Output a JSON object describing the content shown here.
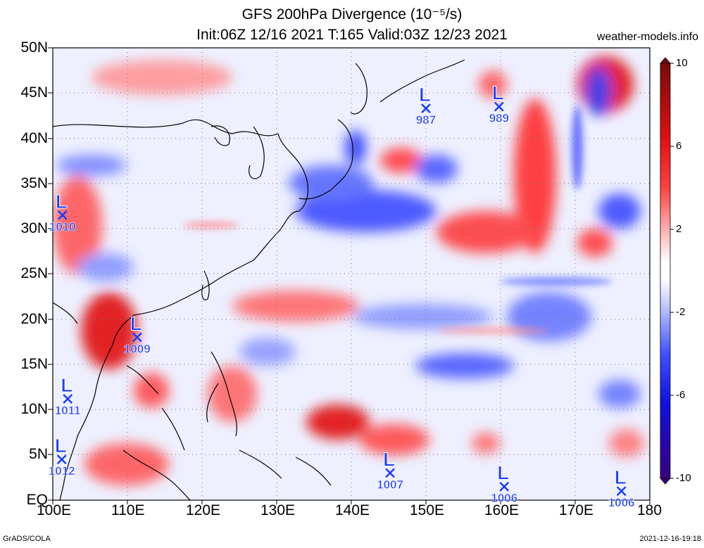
{
  "title_line1": "GFS 200hPa Divergence (10⁻⁵/s)",
  "title_line2": "Init:06Z 12/16 2021 T:165 Valid:03Z 12/23 2021",
  "site": "weather-models.info",
  "footer_left": "GrADS/COLA",
  "footer_right": "2021-12-16-19:18",
  "lat_labels": [
    "50N",
    "45N",
    "40N",
    "35N",
    "30N",
    "25N",
    "20N",
    "15N",
    "10N",
    "5N",
    "EQ"
  ],
  "lon_labels": [
    "100E",
    "110E",
    "120E",
    "130E",
    "140E",
    "150E",
    "160E",
    "170E",
    "180"
  ],
  "colorbar_labels": [
    "10",
    "6",
    "2",
    "-2",
    "-6",
    "-10"
  ],
  "colors": {
    "positive": "#ff0000",
    "negative": "#0000ff",
    "max": "#8b0000",
    "min": "#2a0060"
  },
  "lows": [
    {
      "lon": 101.3,
      "lat": 31.5,
      "pressure": "1010"
    },
    {
      "lon": 111.3,
      "lat": 18.0,
      "pressure": "1009"
    },
    {
      "lon": 102.0,
      "lat": 11.2,
      "pressure": "1011"
    },
    {
      "lon": 101.2,
      "lat": 4.5,
      "pressure": "1012"
    },
    {
      "lon": 150.0,
      "lat": 43.3,
      "pressure": "987"
    },
    {
      "lon": 159.8,
      "lat": 43.5,
      "pressure": "989"
    },
    {
      "lon": 145.2,
      "lat": 3.0,
      "pressure": "1007"
    },
    {
      "lon": 160.5,
      "lat": 1.5,
      "pressure": "1006"
    },
    {
      "lon": 176.2,
      "lat": 1.0,
      "pressure": "1006"
    }
  ]
}
